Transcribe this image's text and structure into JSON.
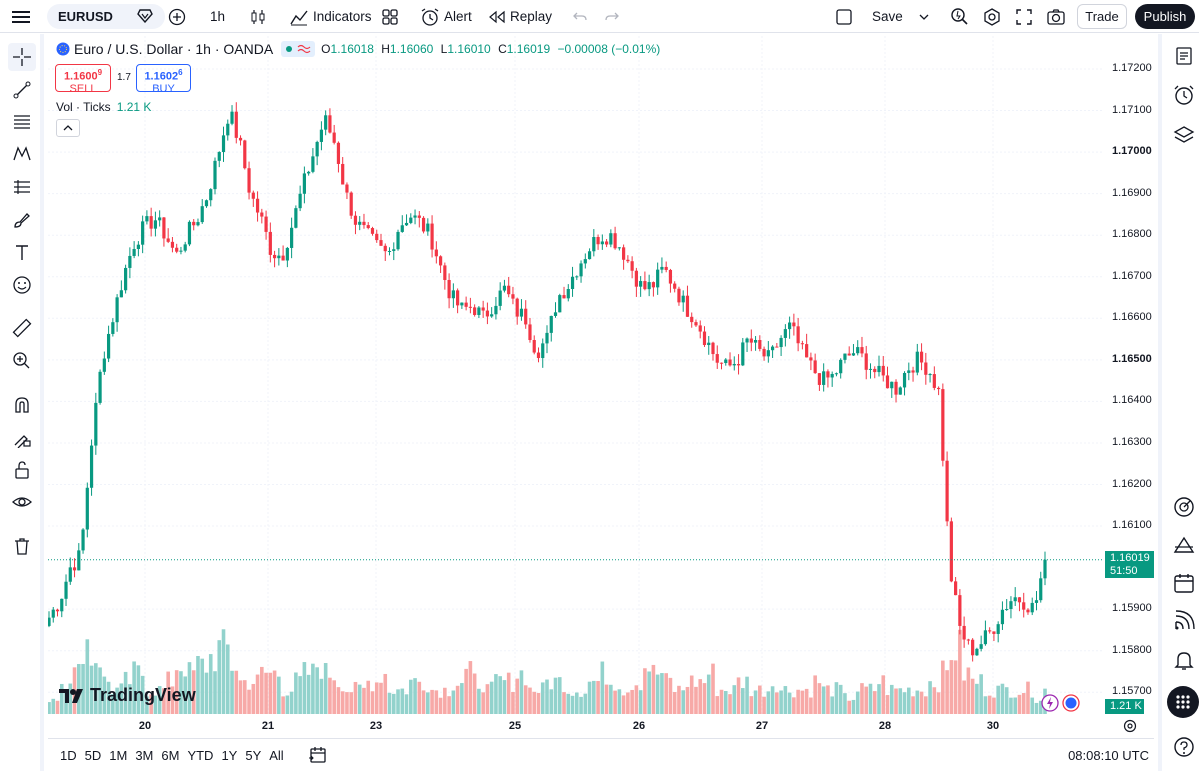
{
  "topbar": {
    "symbol": "EURUSD",
    "interval": "1h",
    "indicators_label": "Indicators",
    "alert_label": "Alert",
    "replay_label": "Replay",
    "save_label": "Save",
    "trade_label": "Trade",
    "publish_label": "Publish"
  },
  "legend": {
    "title": "Euro / U.S. Dollar · 1h · OANDA",
    "o_label": "O",
    "o_value": "1.16018",
    "h_label": "H",
    "h_value": "1.16060",
    "l_label": "L",
    "l_value": "1.16010",
    "c_label": "C",
    "c_value": "1.16019",
    "change": "−0.00008 (−0.01%)",
    "sell_price": "1.1600",
    "sell_sup": "9",
    "sell_label": "SELL",
    "buy_price": "1.1602",
    "buy_sup": "6",
    "buy_label": "BUY",
    "spread": "1.7",
    "vol_label": "Vol · Ticks",
    "vol_value": "1.21 K"
  },
  "price_axis": {
    "labels": [
      "1.17200",
      "1.17100",
      "1.17000",
      "1.16900",
      "1.16800",
      "1.16700",
      "1.16600",
      "1.16500",
      "1.16400",
      "1.16300",
      "1.16200",
      "1.16100",
      "1.15900",
      "1.15800",
      "1.15700"
    ],
    "bold_labels": [
      "1.17000",
      "1.16500"
    ],
    "current_price": "1.16019",
    "countdown": "51:50",
    "volume_tag": "1.21 K"
  },
  "time_axis": {
    "labels": [
      "20",
      "21",
      "23",
      "25",
      "26",
      "27",
      "28",
      "30"
    ]
  },
  "bottombar": {
    "ranges": [
      "1D",
      "5D",
      "1M",
      "3M",
      "6M",
      "YTD",
      "1Y",
      "5Y",
      "All"
    ],
    "clock": "08:08:10 UTC"
  },
  "brand": {
    "logo_text": "TradingView"
  },
  "colors": {
    "up": "#089981",
    "down": "#f23645",
    "vol_up": "#92d2cc",
    "vol_down": "#f7a9a7",
    "accent": "#2962ff"
  },
  "chart_data": {
    "type": "candlestick",
    "title": "Euro / U.S. Dollar · 1h · OANDA",
    "ylim": [
      1.1565,
      1.1725
    ],
    "x_labels": [
      "20",
      "21",
      "23",
      "25",
      "26",
      "27",
      "28",
      "30"
    ],
    "close_path": [
      1.1588,
      1.1592,
      1.16,
      1.1603,
      1.163,
      1.165,
      1.166,
      1.167,
      1.1678,
      1.1682,
      1.1684,
      1.168,
      1.1675,
      1.168,
      1.1684,
      1.169,
      1.17,
      1.171,
      1.1702,
      1.169,
      1.1684,
      1.1676,
      1.1675,
      1.1683,
      1.1692,
      1.17,
      1.1708,
      1.1702,
      1.169,
      1.1683,
      1.168,
      1.1677,
      1.1675,
      1.1682,
      1.1685,
      1.1683,
      1.168,
      1.1672,
      1.1665,
      1.1662,
      1.1663,
      1.166,
      1.1664,
      1.1667,
      1.1662,
      1.166,
      1.1652,
      1.1655,
      1.1665,
      1.1668,
      1.1673,
      1.1677,
      1.168,
      1.168,
      1.1677,
      1.1672,
      1.1667,
      1.1668,
      1.1672,
      1.1668,
      1.1663,
      1.166,
      1.1655,
      1.165,
      1.1648,
      1.165,
      1.1655,
      1.1652,
      1.165,
      1.1655,
      1.1658,
      1.1652,
      1.1648,
      1.1645,
      1.1646,
      1.165,
      1.1652,
      1.165,
      1.1647,
      1.1645,
      1.1643,
      1.1648,
      1.165,
      1.1648,
      1.1642,
      1.16,
      1.1585,
      1.158,
      1.1582,
      1.1585,
      1.159,
      1.1593,
      1.1592,
      1.159,
      1.1602
    ],
    "volume_level": [
      0.2,
      0.4,
      0.5,
      0.9,
      0.7,
      0.4,
      0.3,
      0.4,
      0.5,
      0.3,
      0.3,
      0.4,
      0.6,
      0.5,
      0.6,
      0.7,
      0.8,
      0.6,
      0.4,
      0.4,
      0.5,
      0.5,
      0.3,
      0.4,
      0.5,
      0.6,
      0.5,
      0.4,
      0.3,
      0.3,
      0.4,
      0.5,
      0.3,
      0.3,
      0.4,
      0.4,
      0.3,
      0.3,
      0.4,
      0.5,
      0.4,
      0.3,
      0.4,
      0.4,
      0.5,
      0.3,
      0.3,
      0.4,
      0.4,
      0.3,
      0.3,
      0.4,
      0.5,
      0.4,
      0.3,
      0.4,
      0.6,
      0.5,
      0.4,
      0.3,
      0.4,
      0.4,
      0.5,
      0.3,
      0.3,
      0.4,
      0.3,
      0.3,
      0.4,
      0.3,
      0.3,
      0.3,
      0.4,
      0.3,
      0.3,
      0.2,
      0.3,
      0.3,
      0.4,
      0.3,
      0.3,
      0.3,
      0.3,
      0.4,
      0.5,
      0.8,
      0.5,
      0.4,
      0.3,
      0.3,
      0.3,
      0.3,
      0.3,
      0.2,
      0.3
    ]
  }
}
